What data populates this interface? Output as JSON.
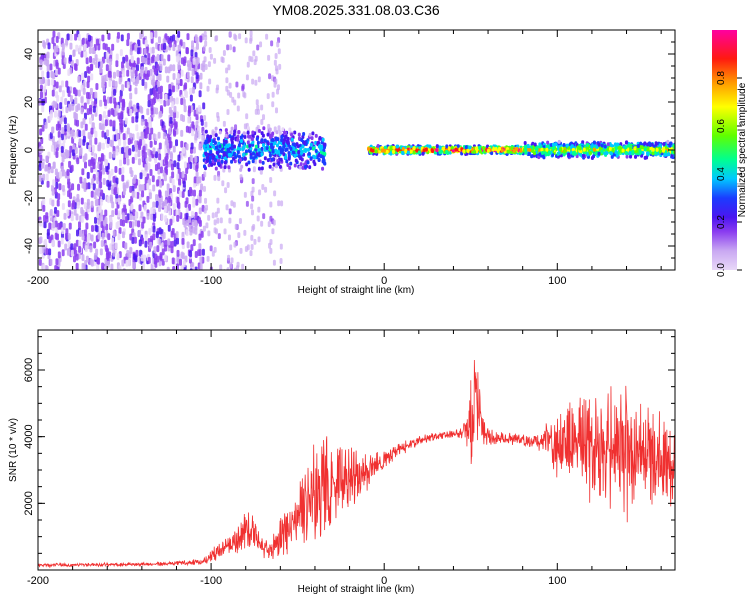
{
  "chart_data": [
    {
      "type": "heatmap",
      "title": "YM08.2025.331.08.03.C36",
      "xlabel": "Height of straight line (km)",
      "ylabel": "Frequency (Hz)",
      "xlim": [
        -200,
        168
      ],
      "ylim": [
        -50,
        50
      ],
      "xticks": [
        "-200",
        "-100",
        "0",
        "100"
      ],
      "xtick_values": [
        -200,
        -100,
        0,
        100
      ],
      "yticks": [
        "-40",
        "-20",
        "0",
        "20",
        "40"
      ],
      "ytick_values": [
        -40,
        -20,
        0,
        20,
        40
      ],
      "colorbar": {
        "label": "Normalized spectral amplitude",
        "range": [
          0,
          1
        ],
        "ticks": [
          "0.0",
          "0.2",
          "0.4",
          "0.6",
          "0.8"
        ],
        "tick_values": [
          0.0,
          0.2,
          0.4,
          0.6,
          0.8
        ],
        "colors": [
          "#e8d8f8",
          "#c9a8f2",
          "#8a3cf0",
          "#4b16f0",
          "#1b3cff",
          "#00c8ff",
          "#00ff90",
          "#60ff00",
          "#ffff00",
          "#ff9a00",
          "#ff1a10",
          "#ff00a0"
        ]
      },
      "features": [
        {
          "x_range": [
            -200,
            -105
          ],
          "freq_range": [
            -50,
            50
          ],
          "amplitude": 0.18,
          "note": "broadband noise"
        },
        {
          "x_range": [
            -105,
            -35
          ],
          "freq_range": [
            -8,
            8
          ],
          "amplitude": 0.45,
          "note": "signal onset band"
        },
        {
          "x_range": [
            -10,
            80
          ],
          "freq_range": [
            -1.5,
            1.5
          ],
          "amplitude": 0.95,
          "note": "carrier line"
        },
        {
          "x_range": [
            80,
            168
          ],
          "freq_range": [
            -3,
            3
          ],
          "amplitude": 0.7,
          "note": "carrier line"
        }
      ]
    },
    {
      "type": "line",
      "title": "",
      "xlabel": "Height of straight line (km)",
      "ylabel": "SNR (10 * v/v)",
      "xlim": [
        -200,
        168
      ],
      "ylim": [
        0,
        7200
      ],
      "xticks": [
        "-200",
        "-100",
        "0",
        "100"
      ],
      "xtick_values": [
        -200,
        -100,
        0,
        100
      ],
      "yticks": [
        "2000",
        "4000",
        "6000"
      ],
      "ytick_values": [
        2000,
        4000,
        6000
      ],
      "color": "#f03030",
      "series": [
        {
          "name": "SNR",
          "x": [
            -200,
            -180,
            -160,
            -140,
            -120,
            -105,
            -95,
            -85,
            -78,
            -72,
            -65,
            -58,
            -50,
            -42,
            -36,
            -30,
            -22,
            -15,
            -8,
            0,
            8,
            15,
            25,
            35,
            45,
            50,
            53,
            56,
            60,
            70,
            80,
            90,
            95,
            100,
            110,
            120,
            130,
            140,
            150,
            160,
            168
          ],
          "values": [
            150,
            150,
            160,
            170,
            200,
            250,
            600,
            900,
            1300,
            800,
            600,
            1000,
            1500,
            2200,
            2600,
            2500,
            2700,
            2900,
            3100,
            3300,
            3600,
            3800,
            3950,
            4050,
            4100,
            4300,
            5200,
            4400,
            4000,
            3950,
            3900,
            3800,
            4000,
            3700,
            3900,
            3600,
            3500,
            3400,
            3400,
            3300,
            3300
          ],
          "noise": [
            60,
            60,
            60,
            60,
            70,
            120,
            300,
            500,
            800,
            400,
            350,
            900,
            1200,
            1400,
            2000,
            1500,
            1200,
            900,
            600,
            350,
            250,
            200,
            150,
            120,
            200,
            1500,
            1600,
            900,
            300,
            200,
            200,
            300,
            600,
            1100,
            1600,
            2000,
            2400,
            2400,
            2000,
            1600,
            1400
          ]
        }
      ]
    }
  ]
}
